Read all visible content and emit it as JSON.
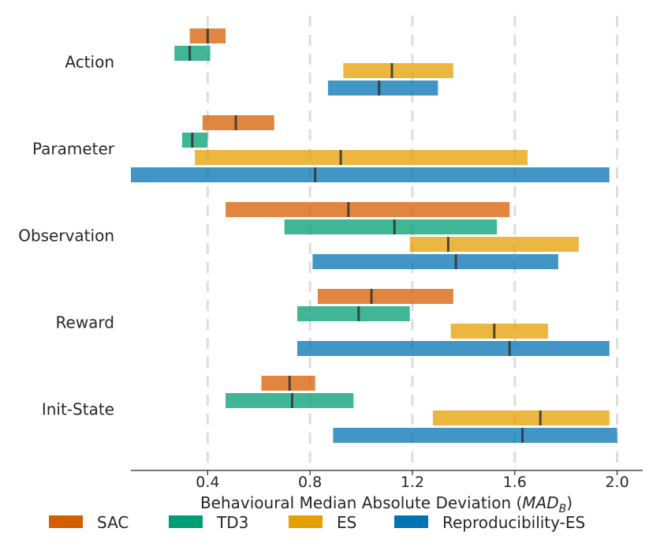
{
  "chart_data": {
    "type": "bar",
    "subtype": "horizontal-range-with-median",
    "title": "",
    "xlabel": "Behavioural Median Absolute Deviation (",
    "xlabel_math": "MAD",
    "xlabel_math_sub": "B",
    "xlabel_close": ")",
    "ylabel": "",
    "xlim": [
      0.1,
      2.1
    ],
    "xticks": [
      0.4,
      0.8,
      1.2,
      1.6,
      2.0
    ],
    "xtick_labels": [
      "0.4",
      "0.8",
      "1.2",
      "1.6",
      "2.0"
    ],
    "grid": "vertical dashed",
    "legend_position": "bottom",
    "categories": [
      "Action",
      "Parameter",
      "Observation",
      "Reward",
      "Init-State"
    ],
    "series": [
      {
        "name": "SAC",
        "color": "#d55e00",
        "low": [
          0.33,
          0.38,
          0.47,
          0.83,
          0.61
        ],
        "high": [
          0.47,
          0.66,
          1.58,
          1.36,
          0.82
        ],
        "median": [
          0.4,
          0.51,
          0.95,
          1.04,
          0.72
        ]
      },
      {
        "name": "TD3",
        "color": "#009e73",
        "low": [
          0.27,
          0.3,
          0.7,
          0.75,
          0.47
        ],
        "high": [
          0.41,
          0.4,
          1.53,
          1.19,
          0.97
        ],
        "median": [
          0.33,
          0.34,
          1.13,
          0.99,
          0.73
        ]
      },
      {
        "name": "ES",
        "color": "#e69f00",
        "low": [
          0.93,
          0.35,
          1.19,
          1.35,
          1.28
        ],
        "high": [
          1.36,
          1.65,
          1.85,
          1.73,
          1.97
        ],
        "median": [
          1.12,
          0.92,
          1.34,
          1.52,
          1.7
        ]
      },
      {
        "name": "Reproducibility-ES",
        "color": "#0173b2",
        "low": [
          0.87,
          0.1,
          0.81,
          0.75,
          0.89
        ],
        "high": [
          1.3,
          1.97,
          1.77,
          1.97,
          2.0
        ],
        "median": [
          1.07,
          0.82,
          1.37,
          1.58,
          1.63
        ]
      }
    ]
  }
}
